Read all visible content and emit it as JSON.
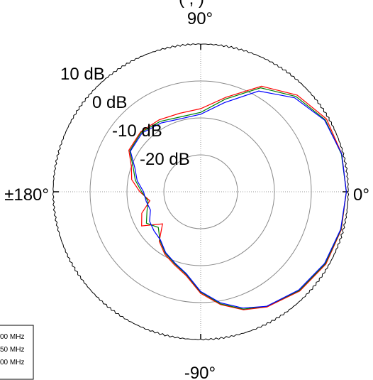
{
  "title_fragment": "(                ,                 )",
  "chart_data": {
    "type": "polar-line",
    "unit": "dB",
    "r_range": [
      -30,
      10
    ],
    "rings": [
      {
        "value": 10,
        "label": "10 dB"
      },
      {
        "value": 0,
        "label": "0 dB"
      },
      {
        "value": -10,
        "label": "-10 dB"
      },
      {
        "value": -20,
        "label": "-20 dB"
      }
    ],
    "angle_labels": [
      {
        "angle": 90,
        "label": "90°"
      },
      {
        "angle": 0,
        "label": "0°"
      },
      {
        "angle": -90,
        "label": "-90°"
      },
      {
        "angle": 180,
        "label": "±180°"
      }
    ],
    "theta": [
      0,
      15,
      30,
      45,
      60,
      75,
      90,
      105,
      120,
      135,
      150,
      160,
      170,
      180,
      190,
      200,
      210,
      220,
      230,
      240,
      250,
      260,
      270,
      280,
      290,
      300,
      315,
      330,
      345,
      360
    ],
    "series": [
      {
        "name": "00 MHz",
        "color": "#ff0000",
        "values": [
          9.5,
          9.6,
          9.4,
          7.0,
          3.0,
          -3.5,
          -7.5,
          -8.0,
          -7.5,
          -7.0,
          -7.5,
          -10.0,
          -11.0,
          -13.5,
          -16.0,
          -13.0,
          -11.5,
          -16.5,
          -12.5,
          -10.5,
          -9.0,
          -7.0,
          -2.5,
          1.0,
          4.0,
          6.0,
          8.0,
          9.2,
          9.5,
          9.5
        ]
      },
      {
        "name": "50 MHz",
        "color": "#008000",
        "values": [
          9.5,
          9.5,
          9.0,
          6.5,
          2.5,
          -4.0,
          -8.5,
          -9.0,
          -8.0,
          -7.2,
          -7.8,
          -10.5,
          -12.0,
          -14.0,
          -15.5,
          -14.5,
          -13.0,
          -15.0,
          -12.8,
          -10.8,
          -9.3,
          -7.3,
          -2.8,
          0.8,
          3.8,
          5.8,
          7.8,
          9.0,
          9.4,
          9.5
        ]
      },
      {
        "name": "00 MHz",
        "color": "#0000ff",
        "values": [
          9.5,
          9.6,
          8.8,
          6.0,
          1.5,
          -5.0,
          -9.0,
          -9.5,
          -8.5,
          -7.5,
          -8.0,
          -11.0,
          -12.5,
          -14.5,
          -15.0,
          -15.5,
          -14.0,
          -13.5,
          -13.0,
          -11.0,
          -9.5,
          -7.5,
          -3.0,
          0.5,
          3.5,
          5.8,
          7.6,
          8.8,
          9.3,
          9.5
        ]
      }
    ],
    "legend": [
      "00 MHz",
      "50 MHz",
      "00 MHz"
    ],
    "legend_position": "bottom-left"
  }
}
